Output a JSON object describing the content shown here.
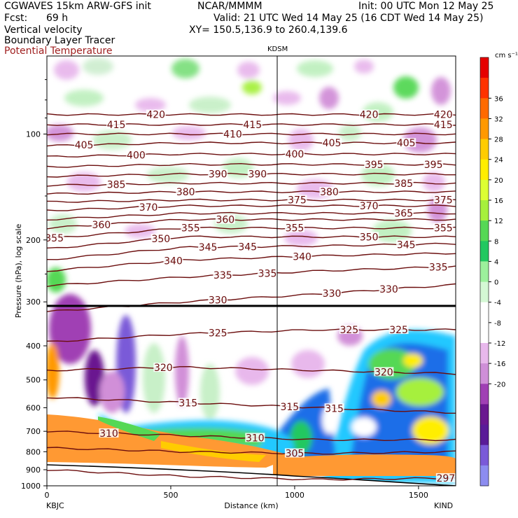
{
  "header": {
    "model": "CGWAVES 15km ARW-GFS init",
    "center": "NCAR/MMMM",
    "init": "Init: 00 UTC Mon 12 May 25",
    "fcst_label": "Fcst:",
    "fcst_value": "69 h",
    "valid": "Valid: 21 UTC Wed 14 May 25 (16 CDT Wed 14 May 25)",
    "field1": "Vertical velocity",
    "field2": "Boundary Layer Tracer",
    "field3": "Potential Temperature",
    "xy": "XY= 150.5,136.9 to 260.4,139.6"
  },
  "station_marker": "KDSM",
  "colorbar": {
    "unit": "cm s⁻¹",
    "ticks": [
      "36",
      "32",
      "28",
      "24",
      "20",
      "16",
      "12",
      "8",
      "4",
      "0",
      "-4",
      "-8",
      "-12",
      "-16",
      "-20"
    ],
    "colors": [
      "#e60000",
      "#ff3300",
      "#ff6a00",
      "#ff9900",
      "#ffcc00",
      "#ffee00",
      "#ddff33",
      "#a6f03c",
      "#55d855",
      "#22c860",
      "#9cf09c",
      "#d4f8d4",
      "#ffffff",
      "#ffffff",
      "#e8b8ec",
      "#cf8fd8",
      "#a040b4",
      "#6a1890",
      "#5a1c98",
      "#7a5ad8",
      "#8c8cf0"
    ],
    "color_names": "red-to-white-to-violet"
  },
  "chart_data": {
    "type": "heatmap",
    "title": "",
    "xlabel": "Distance (km)",
    "ylabel": "Pressure (hPa), log scale",
    "x_ticks": [
      0,
      500,
      1000,
      1500
    ],
    "x_range": [
      0,
      1650
    ],
    "y_ticks": [
      100,
      200,
      300,
      400,
      500,
      600,
      700,
      800,
      900,
      1000
    ],
    "y_scale": "log",
    "y_range": [
      1000,
      60
    ],
    "x_endpoints": [
      "KBJC",
      "KIND"
    ],
    "theta_contours": [
      {
        "value": 420,
        "labels_x": [
          440,
          1300,
          1600
        ]
      },
      {
        "value": 415,
        "labels_x": [
          280,
          830,
          1600
        ]
      },
      {
        "value": 410,
        "labels_x": [
          750
        ]
      },
      {
        "value": 405,
        "labels_x": [
          150,
          1150,
          1450
        ]
      },
      {
        "value": 400,
        "labels_x": [
          360,
          1000
        ]
      },
      {
        "value": 395,
        "labels_x": [
          1320,
          1560
        ]
      },
      {
        "value": 390,
        "labels_x": [
          690,
          850
        ]
      },
      {
        "value": 385,
        "labels_x": [
          280,
          1440
        ]
      },
      {
        "value": 380,
        "labels_x": [
          560,
          1140
        ]
      },
      {
        "value": 375,
        "labels_x": [
          1010,
          1600
        ]
      },
      {
        "value": 370,
        "labels_x": [
          410,
          1300
        ]
      },
      {
        "value": 365,
        "labels_x": [
          1440
        ]
      },
      {
        "value": 360,
        "labels_x": [
          220,
          720
        ]
      },
      {
        "value": 355,
        "labels_x": [
          30,
          580,
          1000,
          1600
        ]
      },
      {
        "value": 350,
        "labels_x": [
          460,
          1300
        ]
      },
      {
        "value": 345,
        "labels_x": [
          650,
          810,
          1450
        ]
      },
      {
        "value": 340,
        "labels_x": [
          510,
          1030
        ]
      },
      {
        "value": 335,
        "labels_x": [
          710,
          890,
          1580
        ]
      },
      {
        "value": 330,
        "labels_x": [
          690,
          1150,
          1380
        ]
      },
      {
        "value": 325,
        "labels_x": [
          690,
          1220,
          1420
        ]
      },
      {
        "value": 320,
        "labels_x": [
          470,
          1360
        ]
      },
      {
        "value": 315,
        "labels_x": [
          570,
          980,
          1160
        ]
      },
      {
        "value": 310,
        "labels_x": [
          250,
          840
        ]
      },
      {
        "value": 305,
        "labels_x": [
          1000
        ]
      },
      {
        "value": 297,
        "labels_x": [
          1610
        ]
      }
    ],
    "grid": false
  }
}
